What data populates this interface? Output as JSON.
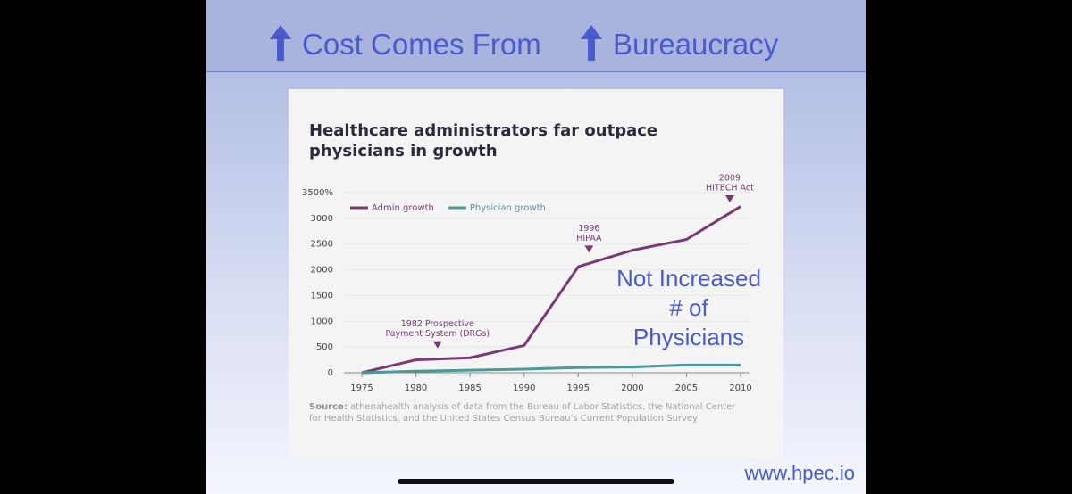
{
  "slide": {
    "title_parts": [
      "Cost Comes From",
      "Bureaucracy"
    ],
    "note_lines": [
      "Not Increased",
      "# of",
      "Physicians"
    ],
    "url": "www.hpec.io"
  },
  "chart_data": {
    "type": "line",
    "title_lines": [
      "Healthcare administrators far outpace",
      "physicians in growth"
    ],
    "x": [
      1975,
      1980,
      1985,
      1990,
      1995,
      2000,
      2005,
      2010
    ],
    "series": [
      {
        "name": "Admin growth",
        "color": "#7b3a76",
        "values": [
          0,
          250,
          290,
          530,
          2060,
          2380,
          2590,
          3230
        ]
      },
      {
        "name": "Physician growth",
        "color": "#4a9a96",
        "values": [
          0,
          30,
          50,
          70,
          100,
          110,
          150,
          150
        ]
      }
    ],
    "xlim": [
      1975,
      2010
    ],
    "xticks": [
      1975,
      1980,
      1985,
      1990,
      1995,
      2000,
      2005,
      2010
    ],
    "ylim": [
      0,
      3500
    ],
    "yticks": [
      0,
      500,
      1000,
      1500,
      2000,
      2500,
      3000,
      {
        "value": 3500,
        "label": "3500%"
      }
    ],
    "grid": true,
    "annotations": [
      {
        "x": 1982,
        "lines": [
          "1982 Prospective",
          "Payment System (DRGs)"
        ]
      },
      {
        "x": 1996,
        "lines": [
          "1996",
          "HIPAA"
        ]
      },
      {
        "x": 2009,
        "lines": [
          "2009",
          "HITECH Act"
        ]
      }
    ],
    "source_label": "Source:",
    "source": "athenahealth analysis of data from the Bureau of Labor Statistics, the National Center for Health Statistics, and the United States Census Bureau's Current Population Survey"
  }
}
